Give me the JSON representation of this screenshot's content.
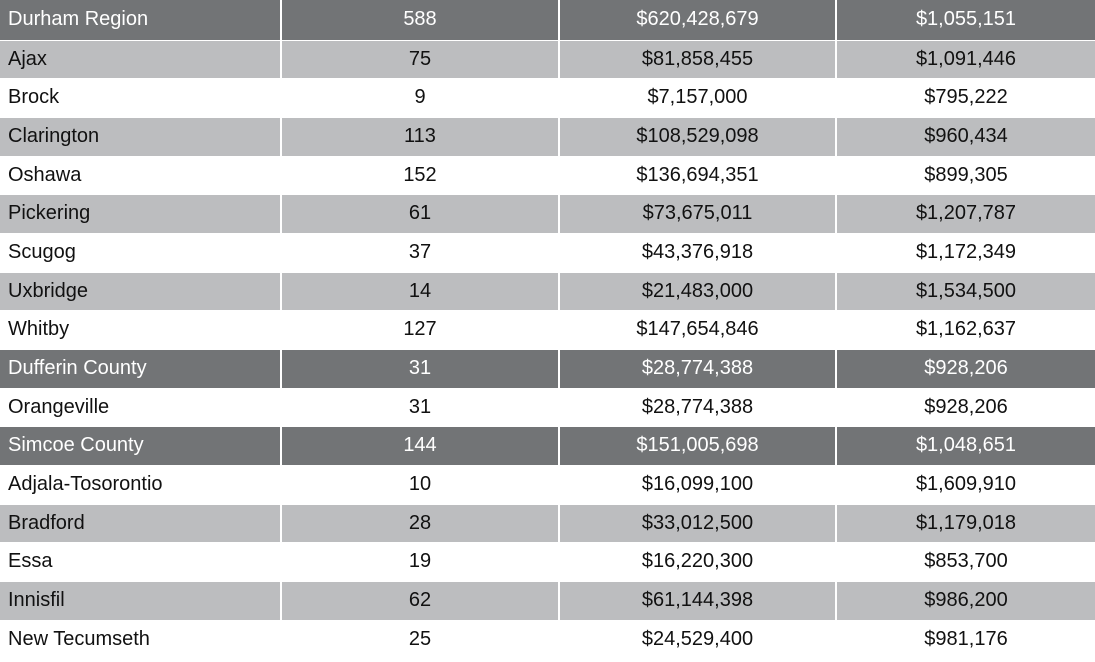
{
  "rows": [
    {
      "kind": "region",
      "name": "Durham Region",
      "count": "588",
      "total": "$620,428,679",
      "average": "$1,055,151"
    },
    {
      "kind": "shade",
      "name": "Ajax",
      "count": "75",
      "total": "$81,858,455",
      "average": "$1,091,446"
    },
    {
      "kind": "plain",
      "name": "Brock",
      "count": "9",
      "total": "$7,157,000",
      "average": "$795,222"
    },
    {
      "kind": "shade",
      "name": "Clarington",
      "count": "113",
      "total": "$108,529,098",
      "average": "$960,434"
    },
    {
      "kind": "plain",
      "name": "Oshawa",
      "count": "152",
      "total": "$136,694,351",
      "average": "$899,305"
    },
    {
      "kind": "shade",
      "name": "Pickering",
      "count": "61",
      "total": "$73,675,011",
      "average": "$1,207,787"
    },
    {
      "kind": "plain",
      "name": "Scugog",
      "count": "37",
      "total": "$43,376,918",
      "average": "$1,172,349"
    },
    {
      "kind": "shade",
      "name": "Uxbridge",
      "count": "14",
      "total": "$21,483,000",
      "average": "$1,534,500"
    },
    {
      "kind": "plain",
      "name": "Whitby",
      "count": "127",
      "total": "$147,654,846",
      "average": "$1,162,637"
    },
    {
      "kind": "region",
      "name": "Dufferin County",
      "count": "31",
      "total": "$28,774,388",
      "average": "$928,206"
    },
    {
      "kind": "plain",
      "name": "Orangeville",
      "count": "31",
      "total": "$28,774,388",
      "average": "$928,206"
    },
    {
      "kind": "region",
      "name": "Simcoe County",
      "count": "144",
      "total": "$151,005,698",
      "average": "$1,048,651"
    },
    {
      "kind": "plain",
      "name": "Adjala-Tosorontio",
      "count": "10",
      "total": "$16,099,100",
      "average": "$1,609,910"
    },
    {
      "kind": "shade",
      "name": "Bradford",
      "count": "28",
      "total": "$33,012,500",
      "average": "$1,179,018"
    },
    {
      "kind": "plain",
      "name": "Essa",
      "count": "19",
      "total": "$16,220,300",
      "average": "$853,700"
    },
    {
      "kind": "shade",
      "name": "Innisfil",
      "count": "62",
      "total": "$61,144,398",
      "average": "$986,200"
    },
    {
      "kind": "plain",
      "name": "New Tecumseth",
      "count": "25",
      "total": "$24,529,400",
      "average": "$981,176"
    }
  ]
}
